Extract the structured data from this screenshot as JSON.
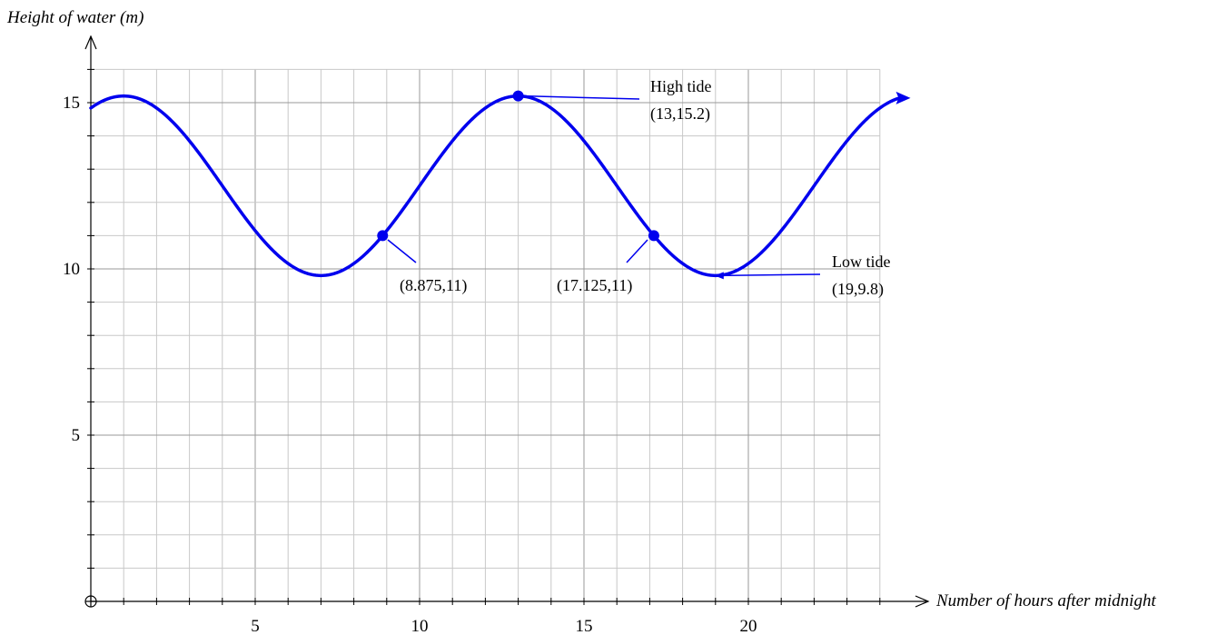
{
  "chart_data": {
    "type": "line",
    "title": "",
    "xlabel": "Number of hours after midnight",
    "ylabel": "Height of water (m)",
    "xlim": [
      0,
      24
    ],
    "ylim": [
      0,
      16
    ],
    "x_ticks": [
      5,
      10,
      15,
      20
    ],
    "y_ticks": [
      5,
      10,
      15
    ],
    "grid": true,
    "colors": {
      "curve": "#0000ee"
    },
    "function": {
      "form": "A*cos(2*pi*(t - t0)/P) + C",
      "A": 2.7,
      "C": 12.5,
      "P": 12,
      "t0": 1
    },
    "series": [
      {
        "x": [
          0,
          1,
          2,
          3,
          4,
          5,
          6,
          7,
          8,
          8.875,
          10,
          11,
          12,
          13,
          14,
          15,
          16,
          17.125,
          18,
          19,
          20,
          21,
          22,
          23,
          24
        ],
        "values": [
          14.84,
          15.2,
          14.84,
          13.85,
          12.5,
          11.15,
          10.16,
          9.8,
          10.16,
          11,
          12.5,
          13.85,
          14.84,
          15.2,
          14.84,
          13.85,
          12.5,
          11,
          10.16,
          9.8,
          10.16,
          11.15,
          12.5,
          13.85,
          14.84
        ]
      }
    ],
    "highlight_points": [
      {
        "x": 8.875,
        "y": 11,
        "label": "(8.875,11)"
      },
      {
        "x": 13,
        "y": 15.2,
        "label": "(13,15.2)"
      },
      {
        "x": 17.125,
        "y": 11,
        "label": "(17.125,11)"
      }
    ],
    "annotations": [
      {
        "id": "high",
        "title": "High tide",
        "coords": "(13,15.2)",
        "x": 13,
        "y": 15.2
      },
      {
        "id": "low",
        "title": "Low tide",
        "coords": "(19,9.8)",
        "x": 19,
        "y": 9.8
      }
    ]
  }
}
